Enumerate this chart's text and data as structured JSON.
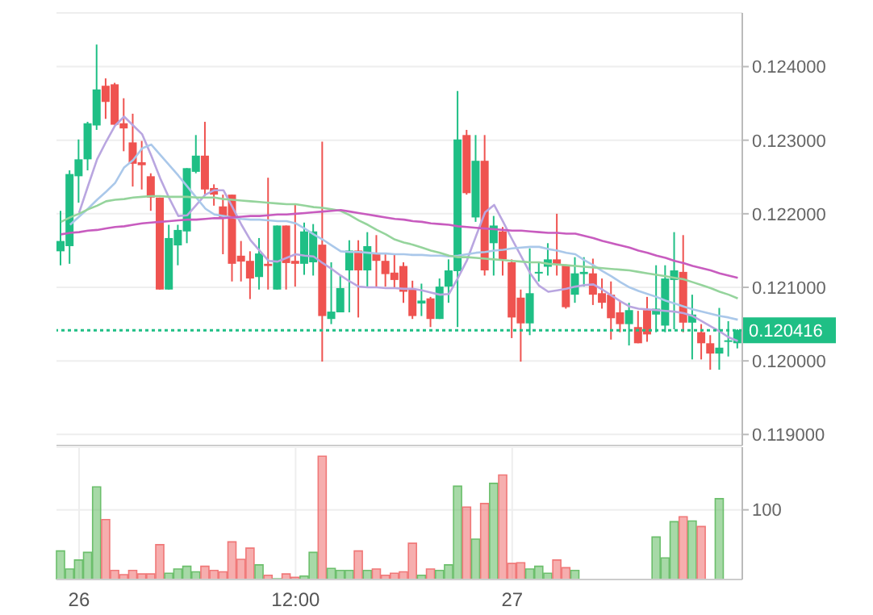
{
  "chart_data": [
    {
      "type": "candlestick",
      "categories": [
        null,
        null,
        null,
        null,
        null,
        null,
        null,
        null,
        null,
        null,
        null,
        null,
        null,
        null,
        null,
        null,
        null,
        null,
        null,
        null,
        null,
        null,
        null,
        null,
        null,
        null,
        null,
        null,
        null,
        null,
        null,
        null,
        null,
        null,
        null,
        null,
        null,
        null,
        null,
        null,
        null,
        null,
        null,
        null,
        null,
        null,
        null,
        null,
        null,
        null,
        null,
        null,
        null,
        null,
        null,
        null,
        null,
        null,
        null,
        null,
        null,
        null,
        null,
        null,
        null,
        null,
        null,
        null,
        null,
        null,
        null,
        null,
        null,
        null,
        null,
        null
      ],
      "ohlc": [
        [
          0.12149,
          0.12204,
          0.1213,
          0.12163
        ],
        [
          0.12156,
          0.12259,
          0.12132,
          0.12254
        ],
        [
          0.12251,
          0.12301,
          0.12215,
          0.12274
        ],
        [
          0.12274,
          0.12325,
          0.12259,
          0.12323
        ],
        [
          0.1232,
          0.1243,
          0.12314,
          0.12369
        ],
        [
          0.12374,
          0.12384,
          0.12329,
          0.12352
        ],
        [
          0.12376,
          0.12378,
          0.12321,
          0.12321
        ],
        [
          0.12323,
          0.12357,
          0.12285,
          0.12316
        ],
        [
          0.12297,
          0.12336,
          0.12237,
          0.12268
        ],
        [
          0.1227,
          0.12299,
          0.12233,
          0.12266
        ],
        [
          0.12251,
          0.12255,
          0.12204,
          0.12222
        ],
        [
          0.12222,
          0.12222,
          0.12097,
          0.12097
        ],
        [
          0.12097,
          0.12185,
          0.12097,
          0.12167
        ],
        [
          0.12157,
          0.12185,
          0.1213,
          0.12178
        ],
        [
          0.12176,
          0.12262,
          0.1216,
          0.12262
        ],
        [
          0.12257,
          0.12307,
          0.12255,
          0.12279
        ],
        [
          0.12279,
          0.12325,
          0.12226,
          0.12233
        ],
        [
          0.12235,
          0.1224,
          0.12211,
          0.12226
        ],
        [
          0.1221,
          0.12226,
          0.12145,
          0.12195
        ],
        [
          0.12226,
          0.12226,
          0.12108,
          0.12132
        ],
        [
          0.12143,
          0.12163,
          0.12108,
          0.12135
        ],
        [
          0.12136,
          0.12149,
          0.12084,
          0.12112
        ],
        [
          0.12114,
          0.12167,
          0.12097,
          0.12146
        ],
        [
          0.12132,
          0.12249,
          0.12097,
          0.12129
        ],
        [
          0.12097,
          0.12184,
          0.12097,
          0.12184
        ],
        [
          0.12184,
          0.12184,
          0.12097,
          0.12133
        ],
        [
          0.12136,
          0.12213,
          0.12101,
          0.12132
        ],
        [
          0.12132,
          0.12188,
          0.12117,
          0.12176
        ],
        [
          0.12134,
          0.12186,
          0.12116,
          0.12176
        ],
        [
          0.12158,
          0.12298,
          0.11999,
          0.12061
        ],
        [
          0.12057,
          0.12134,
          0.1205,
          0.12067
        ],
        [
          0.12066,
          0.12116,
          0.12066,
          0.12099
        ],
        [
          0.12123,
          0.12164,
          0.12066,
          0.1215
        ],
        [
          0.1215,
          0.12164,
          0.12059,
          0.12123
        ],
        [
          0.12123,
          0.12175,
          0.12101,
          0.12156
        ],
        [
          0.12147,
          0.12171,
          0.12101,
          0.12136
        ],
        [
          0.12136,
          0.12145,
          0.12101,
          0.12118
        ],
        [
          0.1212,
          0.12145,
          0.12098,
          0.1211
        ],
        [
          0.12129,
          0.12134,
          0.12079,
          0.12094
        ],
        [
          0.12098,
          0.12109,
          0.12057,
          0.12061
        ],
        [
          0.12078,
          0.12105,
          0.12061,
          0.12082
        ],
        [
          0.12085,
          0.12087,
          0.12046,
          0.12057
        ],
        [
          0.12057,
          0.12112,
          0.12057,
          0.12101
        ],
        [
          0.12101,
          0.12138,
          0.12079,
          0.12123
        ],
        [
          0.12122,
          0.12367,
          0.12046,
          0.12301
        ],
        [
          0.12307,
          0.12314,
          0.12226,
          0.12228
        ],
        [
          0.12195,
          0.12307,
          0.12189,
          0.12272
        ],
        [
          0.12272,
          0.12307,
          0.12116,
          0.12123
        ],
        [
          0.1216,
          0.12197,
          0.12116,
          0.12184
        ],
        [
          0.12176,
          0.12182,
          0.12116,
          0.12138
        ],
        [
          0.12134,
          0.12138,
          0.12031,
          0.12059
        ],
        [
          0.12086,
          0.12097,
          0.11999,
          0.12051
        ],
        [
          0.12051,
          0.12153,
          0.12035,
          0.12092
        ],
        [
          0.12119,
          0.12134,
          0.12108,
          0.12121
        ],
        [
          0.12128,
          0.1216,
          0.12116,
          0.12138
        ],
        [
          0.12138,
          0.122,
          0.12116,
          0.12132
        ],
        [
          0.1213,
          0.12131,
          0.12071,
          0.12073
        ],
        [
          0.1209,
          0.12141,
          0.12079,
          0.12119
        ],
        [
          0.12118,
          0.12141,
          0.12101,
          0.12121
        ],
        [
          0.12119,
          0.12139,
          0.12076,
          0.1209
        ],
        [
          0.12092,
          0.12112,
          0.12071,
          0.12079
        ],
        [
          0.1209,
          0.12108,
          0.12029,
          0.12058
        ],
        [
          0.12066,
          0.12082,
          0.12039,
          0.1205
        ],
        [
          0.1205,
          0.12079,
          0.12021,
          0.12069
        ],
        [
          0.12046,
          0.12068,
          0.12024,
          0.12024
        ],
        [
          0.12069,
          0.12087,
          0.12026,
          0.12036
        ],
        [
          0.12063,
          0.1213,
          0.12039,
          0.12071
        ],
        [
          0.12048,
          0.1213,
          0.12039,
          0.12112
        ],
        [
          0.1211,
          0.12175,
          0.12043,
          0.12123
        ],
        [
          0.12121,
          0.12171,
          0.12039,
          0.12052
        ],
        [
          0.12052,
          0.1209,
          0.12002,
          0.12063
        ],
        [
          0.12039,
          0.1205,
          0.12002,
          0.12024
        ],
        [
          0.12024,
          0.12035,
          0.11988,
          0.1201
        ],
        [
          0.1201,
          0.12072,
          0.11988,
          0.12018
        ],
        [
          0.12026,
          0.12054,
          0.12006,
          0.12028
        ],
        [
          0.12024,
          0.12043,
          0.12017,
          0.12042
        ]
      ],
      "colors": [
        "#1fbf85",
        "#1fbf85",
        "#1fbf85",
        "#1fbf85",
        "#1fbf85",
        "#ef5350",
        "#ef5350",
        "#ef5350",
        "#ef5350",
        "#ef5350",
        "#ef5350",
        "#ef5350",
        "#1fbf85",
        "#1fbf85",
        "#1fbf85",
        "#1fbf85",
        "#ef5350",
        "#ef5350",
        "#ef5350",
        "#ef5350",
        "#ef5350",
        "#ef5350",
        "#1fbf85",
        "#ef5350",
        "#1fbf85",
        "#ef5350",
        "#ef5350",
        "#1fbf85",
        "#1fbf85",
        "#ef5350",
        "#1fbf85",
        "#1fbf85",
        "#1fbf85",
        "#ef5350",
        "#1fbf85",
        "#ef5350",
        "#ef5350",
        "#ef5350",
        "#ef5350",
        "#ef5350",
        "#1fbf85",
        "#ef5350",
        "#1fbf85",
        "#1fbf85",
        "#1fbf85",
        "#ef5350",
        "#1fbf85",
        "#ef5350",
        "#1fbf85",
        "#ef5350",
        "#ef5350",
        "#ef5350",
        "#1fbf85",
        "#1fbf85",
        "#1fbf85",
        "#ef5350",
        "#ef5350",
        "#1fbf85",
        "#1fbf85",
        "#ef5350",
        "#ef5350",
        "#ef5350",
        "#ef5350",
        "#1fbf85",
        "#ef5350",
        "#ef5350",
        "#1fbf85",
        "#1fbf85",
        "#1fbf85",
        "#ef5350",
        "#1fbf85",
        "#ef5350",
        "#ef5350",
        "#1fbf85",
        "#1fbf85",
        "#1fbf85"
      ],
      "series": [
        {
          "type": "line",
          "color": "#b9a6e0",
          "values": [
            null,
            null,
            0.12201,
            0.12238,
            0.12274,
            0.12298,
            0.1232,
            0.12332,
            0.1232,
            0.12308,
            0.12279,
            0.12248,
            0.12221,
            0.12197,
            0.12198,
            0.12212,
            0.12226,
            0.12232,
            0.12232,
            0.12209,
            0.12185,
            0.12164,
            0.1215,
            0.12136,
            0.12135,
            0.1214,
            0.12145,
            0.12143,
            0.12142,
            0.12133,
            0.12125,
            0.12116,
            0.12108,
            0.12101,
            0.121,
            0.121,
            0.12099,
            0.12099,
            0.12098,
            0.12098,
            0.12096,
            0.12093,
            0.1209,
            0.12091,
            0.12113,
            0.12137,
            0.1217,
            0.12202,
            0.12212,
            0.12189,
            0.12165,
            0.12142,
            0.12119,
            0.12102,
            0.12094,
            0.12096,
            0.12098,
            0.12101,
            0.12103,
            0.12104,
            0.12097,
            0.12089,
            0.12081,
            0.12074,
            0.12071,
            0.1207,
            0.12069,
            0.12068,
            0.12067,
            0.12065,
            0.12061,
            0.12054,
            0.12047,
            0.1204,
            0.12032,
            0.12027
          ]
        },
        {
          "type": "line",
          "color": "#aac8ea",
          "values": [
            null,
            0.12185,
            0.12196,
            0.12207,
            0.12219,
            0.1223,
            0.12242,
            0.12263,
            0.12273,
            0.12289,
            0.12294,
            0.1228,
            0.12266,
            0.12252,
            0.12237,
            0.12222,
            0.12207,
            0.12199,
            0.12197,
            0.12195,
            0.12193,
            0.12192,
            0.12192,
            0.12191,
            0.1219,
            0.1219,
            0.12187,
            0.1218,
            0.12172,
            0.12165,
            0.12157,
            0.12149,
            0.12148,
            0.12148,
            0.12147,
            0.12146,
            0.12146,
            0.12145,
            0.12145,
            0.12144,
            0.12144,
            0.12143,
            0.12143,
            0.12142,
            0.12143,
            0.12145,
            0.12147,
            0.12148,
            0.1215,
            0.12151,
            0.12153,
            0.12154,
            0.12155,
            0.12155,
            0.12152,
            0.1215,
            0.12147,
            0.12145,
            0.12137,
            0.1213,
            0.12122,
            0.12115,
            0.12107,
            0.121,
            0.12095,
            0.12091,
            0.12087,
            0.12082,
            0.12078,
            0.12074,
            0.1207,
            0.12067,
            0.12064,
            0.12061,
            0.12059,
            0.12056
          ]
        },
        {
          "type": "line",
          "color": "#95d49c",
          "values": [
            0.12189,
            0.12195,
            0.122,
            0.12206,
            0.12211,
            0.12217,
            0.12219,
            0.1222,
            0.12222,
            0.12223,
            0.12224,
            0.12224,
            0.12223,
            0.12223,
            0.12223,
            0.12222,
            0.12222,
            0.12222,
            0.1222,
            0.12219,
            0.12218,
            0.12217,
            0.12216,
            0.12215,
            0.12214,
            0.12213,
            0.12213,
            0.12211,
            0.12209,
            0.12208,
            0.12206,
            0.12204,
            0.12198,
            0.12191,
            0.12185,
            0.12178,
            0.12172,
            0.12165,
            0.12161,
            0.12158,
            0.12154,
            0.1215,
            0.12147,
            0.12143,
            0.12141,
            0.12141,
            0.1214,
            0.12139,
            0.12138,
            0.12137,
            0.12136,
            0.12135,
            0.12134,
            0.12134,
            0.12132,
            0.12131,
            0.1213,
            0.12129,
            0.12128,
            0.12127,
            0.12126,
            0.12125,
            0.12124,
            0.12123,
            0.12121,
            0.12119,
            0.12117,
            0.12115,
            0.12113,
            0.12111,
            0.12107,
            0.12103,
            0.12099,
            0.12094,
            0.1209,
            0.12085
          ]
        },
        {
          "type": "line",
          "color": "#c85cbf",
          "values": [
            0.12172,
            0.12174,
            0.12175,
            0.12177,
            0.12178,
            0.1218,
            0.12182,
            0.12183,
            0.12185,
            0.12187,
            0.12188,
            0.12189,
            0.1219,
            0.12191,
            0.12192,
            0.12192,
            0.12193,
            0.12194,
            0.12194,
            0.12195,
            0.12196,
            0.12197,
            0.12197,
            0.12198,
            0.12199,
            0.12199,
            0.122,
            0.12201,
            0.12202,
            0.12203,
            0.12204,
            0.12205,
            0.12203,
            0.12201,
            0.12199,
            0.12197,
            0.12195,
            0.12193,
            0.12192,
            0.1219,
            0.12189,
            0.12187,
            0.12186,
            0.12185,
            0.12183,
            0.12182,
            0.12181,
            0.1218,
            0.12179,
            0.12178,
            0.12177,
            0.12177,
            0.12176,
            0.12175,
            0.12174,
            0.12174,
            0.12173,
            0.12173,
            0.1217,
            0.12167,
            0.12163,
            0.1216,
            0.12157,
            0.12154,
            0.1215,
            0.12147,
            0.12143,
            0.1214,
            0.12136,
            0.12133,
            0.12129,
            0.12126,
            0.12123,
            0.12119,
            0.12116,
            0.12113
          ]
        }
      ],
      "ylim": [
        0.11885,
        0.12473
      ],
      "yticks": [
        {
          "value": 0.119,
          "label": "0.119000"
        },
        {
          "value": 0.12,
          "label": "0.120000"
        },
        {
          "value": 0.121,
          "label": "0.121000"
        },
        {
          "value": 0.122,
          "label": "0.122000"
        },
        {
          "value": 0.123,
          "label": "0.123000"
        },
        {
          "value": 0.124,
          "label": "0.124000"
        }
      ],
      "ref_lines": [
        {
          "axis": "y",
          "value": 0.120416,
          "label": "0.120416",
          "color": "#1fbf85",
          "line_style": "dotted"
        }
      ],
      "grid": "y",
      "tick_labels": "y"
    },
    {
      "type": "bar",
      "categories": [
        null,
        null,
        "26",
        null,
        null,
        null,
        null,
        null,
        null,
        null,
        null,
        null,
        null,
        null,
        null,
        null,
        null,
        null,
        null,
        null,
        null,
        null,
        null,
        null,
        null,
        null,
        "12:00",
        null,
        null,
        null,
        null,
        null,
        null,
        null,
        null,
        null,
        null,
        null,
        null,
        null,
        null,
        null,
        null,
        null,
        null,
        null,
        null,
        null,
        null,
        null,
        "27",
        null,
        null,
        null,
        null,
        null,
        null,
        null,
        null,
        null,
        null,
        null,
        null,
        null,
        null,
        null,
        null,
        null,
        null,
        null,
        null,
        null,
        null,
        null,
        null,
        null
      ],
      "values": [
        41,
        15,
        28,
        39,
        133,
        86,
        13,
        7,
        13,
        8,
        8,
        50,
        9,
        15,
        19,
        11,
        19,
        13,
        11,
        54,
        29,
        45,
        21,
        6,
        1,
        8,
        3,
        5,
        39,
        177,
        16,
        13,
        13,
        41,
        13,
        15,
        6,
        9,
        11,
        52,
        6,
        15,
        13,
        21,
        134,
        104,
        58,
        109,
        138,
        150,
        23,
        24,
        15,
        19,
        9,
        28,
        17,
        13,
        null,
        null,
        null,
        null,
        null,
        null,
        null,
        null,
        61,
        31,
        83,
        90,
        84,
        76,
        null,
        116,
        null,
        null
      ],
      "colors": [
        "#6cbf6c",
        "#6cbf6c",
        "#6cbf6c",
        "#6cbf6c",
        "#6cbf6c",
        "#f07878",
        "#f07878",
        "#f07878",
        "#f07878",
        "#f07878",
        "#f07878",
        "#f07878",
        "#6cbf6c",
        "#6cbf6c",
        "#6cbf6c",
        "#6cbf6c",
        "#f07878",
        "#f07878",
        "#f07878",
        "#f07878",
        "#f07878",
        "#f07878",
        "#6cbf6c",
        "#f07878",
        "#6cbf6c",
        "#f07878",
        "#f07878",
        "#6cbf6c",
        "#6cbf6c",
        "#f07878",
        "#6cbf6c",
        "#6cbf6c",
        "#6cbf6c",
        "#f07878",
        "#6cbf6c",
        "#f07878",
        "#f07878",
        "#f07878",
        "#f07878",
        "#f07878",
        "#6cbf6c",
        "#f07878",
        "#6cbf6c",
        "#6cbf6c",
        "#6cbf6c",
        "#f07878",
        "#6cbf6c",
        "#f07878",
        "#6cbf6c",
        "#f07878",
        "#f07878",
        "#f07878",
        "#6cbf6c",
        "#6cbf6c",
        "#6cbf6c",
        "#f07878",
        "#f07878",
        "#6cbf6c",
        "#6cbf6c",
        "#f07878",
        "#f07878",
        "#f07878",
        "#f07878",
        "#6cbf6c",
        "#f07878",
        "#f07878",
        "#6cbf6c",
        "#6cbf6c",
        "#6cbf6c",
        "#f07878",
        "#6cbf6c",
        "#f07878",
        "#f07878",
        "#6cbf6c",
        "#6cbf6c",
        "#6cbf6c"
      ],
      "ylim": [
        0,
        190
      ],
      "yticks": [
        100
      ],
      "grid": true
    }
  ]
}
